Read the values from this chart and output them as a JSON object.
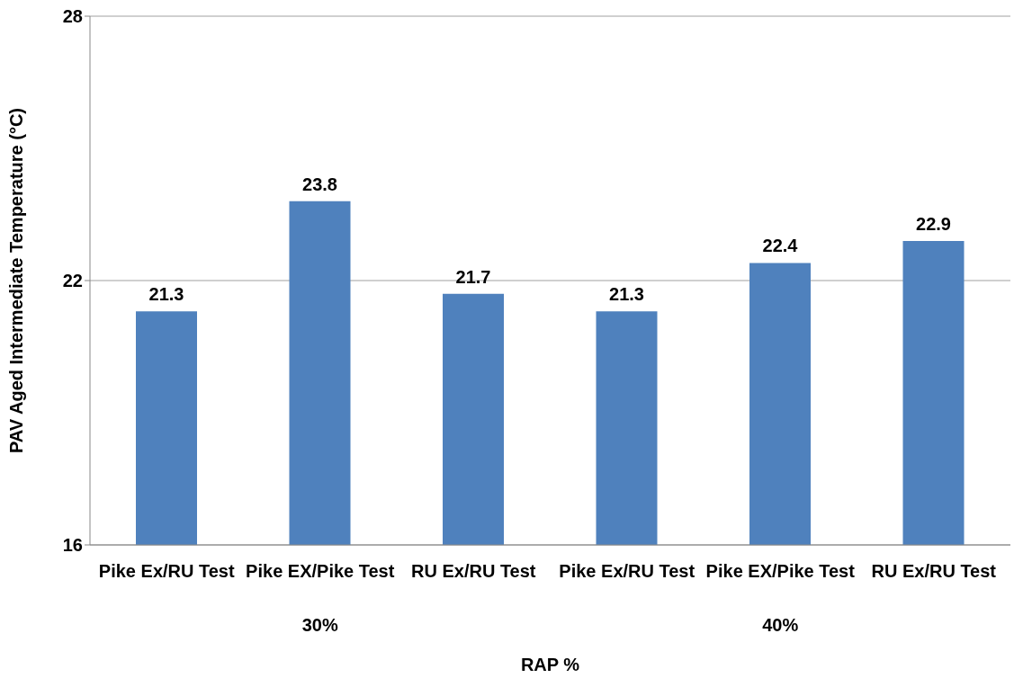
{
  "chart_data": {
    "type": "bar",
    "xlabel": "RAP %",
    "ylabel": "PAV Aged Intermediate Temperature (°C)",
    "categories": [
      "Pike Ex/RU Test",
      "Pike EX/Pike Test",
      "RU Ex/RU Test",
      "Pike Ex/RU Test",
      "Pike EX/Pike Test",
      "RU Ex/RU Test"
    ],
    "values": [
      21.3,
      23.8,
      21.7,
      21.3,
      22.4,
      22.9
    ],
    "color": "#4f81bd",
    "ylim": [
      16,
      28
    ],
    "yticks": [
      16,
      22,
      28
    ],
    "grid": "y",
    "data_labels": true,
    "annotations": [
      "30%",
      "40%"
    ]
  }
}
